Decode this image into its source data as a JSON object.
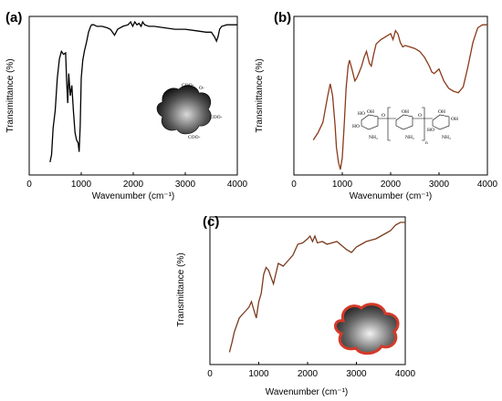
{
  "chart_data": [
    {
      "panel": "(a)",
      "type": "line",
      "xlabel": "Wavenumber (cm⁻¹)",
      "ylabel": "Transmittance (%)",
      "xlim": [
        0,
        4000
      ],
      "ylim": [
        0,
        100
      ],
      "xticks": [
        0,
        1000,
        2000,
        3000,
        4000
      ],
      "line_color": "#000000",
      "inset_labels": [
        "COO-",
        "O-",
        "COO-",
        "COO-"
      ],
      "series": [
        {
          "x": [
            400,
            430,
            460,
            500,
            540,
            580,
            620,
            660,
            700,
            720,
            740,
            760,
            790,
            820,
            850,
            880,
            910,
            940,
            960,
            980,
            1000,
            1030,
            1060,
            1100,
            1140,
            1180,
            1200,
            1240,
            1300,
            1400,
            1500,
            1560,
            1600,
            1640,
            1700,
            1800,
            1900,
            1950,
            1990,
            2030,
            2070,
            2110,
            2150,
            2180,
            2220,
            2300,
            2400,
            2600,
            2800,
            3000,
            3200,
            3400,
            3500,
            3560,
            3600,
            3630,
            3660,
            3700,
            3800,
            4000
          ],
          "y": [
            5,
            10,
            28,
            40,
            62,
            75,
            80,
            78,
            79,
            60,
            45,
            65,
            50,
            57,
            40,
            25,
            20,
            18,
            12,
            30,
            62,
            74,
            80,
            86,
            93,
            97,
            98,
            98,
            97,
            97,
            96,
            95,
            93,
            91,
            95,
            97,
            98,
            100,
            97,
            100,
            98,
            99,
            97,
            100,
            98,
            97,
            97,
            96,
            95,
            95,
            94,
            93,
            93,
            90,
            87,
            90,
            95,
            97,
            98,
            98
          ]
        }
      ]
    },
    {
      "panel": "(b)",
      "type": "line",
      "xlabel": "Wavenumber (cm⁻¹)",
      "ylabel": "Transmittance (%)",
      "xlim": [
        0,
        4000
      ],
      "ylim": [
        0,
        100
      ],
      "xticks": [
        0,
        1000,
        2000,
        3000,
        4000
      ],
      "line_color": "#8b3a1a",
      "inset_labels": [
        "HO",
        "OH",
        "HO",
        "NH₂",
        "OH",
        "O",
        "O",
        "NH₂",
        "OH",
        "OH",
        "HO",
        "NH₂",
        "n"
      ],
      "series": [
        {
          "x": [
            400,
            500,
            600,
            700,
            750,
            800,
            850,
            880,
            920,
            960,
            1000,
            1040,
            1080,
            1120,
            1150,
            1200,
            1260,
            1300,
            1350,
            1400,
            1450,
            1500,
            1560,
            1600,
            1650,
            1700,
            1800,
            1900,
            2000,
            2050,
            2100,
            2150,
            2200,
            2250,
            2300,
            2400,
            2500,
            2600,
            2700,
            2800,
            2850,
            2900,
            3000,
            3100,
            3200,
            3300,
            3400,
            3500,
            3600,
            3700,
            3800,
            3900,
            4000
          ],
          "y": [
            20,
            25,
            32,
            50,
            58,
            50,
            30,
            15,
            5,
            0,
            8,
            30,
            55,
            70,
            74,
            68,
            60,
            62,
            66,
            70,
            76,
            80,
            72,
            70,
            78,
            85,
            88,
            90,
            92,
            88,
            94,
            92,
            86,
            83,
            84,
            83,
            82,
            80,
            76,
            70,
            66,
            65,
            68,
            60,
            55,
            53,
            52,
            56,
            70,
            86,
            96,
            98,
            98
          ]
        }
      ]
    },
    {
      "panel": "(c)",
      "type": "line",
      "xlabel": "Wavenumber (cm⁻¹)",
      "ylabel": "Transmittance (%)",
      "xlim": [
        0,
        4000
      ],
      "ylim": [
        0,
        100
      ],
      "xticks": [
        0,
        1000,
        2000,
        3000,
        4000
      ],
      "line_color": "#7a3b1e",
      "series": [
        {
          "x": [
            400,
            450,
            500,
            600,
            700,
            800,
            850,
            900,
            950,
            1000,
            1050,
            1100,
            1150,
            1200,
            1300,
            1400,
            1500,
            1600,
            1700,
            1800,
            1900,
            2000,
            2050,
            2100,
            2150,
            2200,
            2300,
            2400,
            2600,
            2800,
            2900,
            3000,
            3100,
            3200,
            3300,
            3400,
            3500,
            3600,
            3700,
            3800,
            3900,
            4000
          ],
          "y": [
            5,
            12,
            20,
            30,
            34,
            38,
            42,
            36,
            30,
            42,
            48,
            62,
            67,
            65,
            55,
            70,
            68,
            72,
            76,
            84,
            85,
            88,
            90,
            86,
            90,
            85,
            86,
            84,
            86,
            80,
            78,
            82,
            84,
            86,
            87,
            88,
            90,
            92,
            94,
            98,
            100,
            100
          ]
        }
      ]
    }
  ]
}
